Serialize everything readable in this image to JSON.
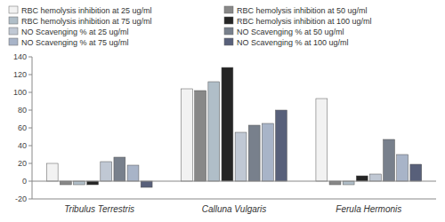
{
  "chart_data": {
    "type": "bar",
    "categories": [
      "Tribulus Terrestris",
      "Calluna Vulgaris",
      "Ferula Hermonis"
    ],
    "series": [
      {
        "name": "RBC hemolysis inhibition at 25 ug/ml",
        "color": "#f2f2f2",
        "values": [
          20,
          104,
          93
        ]
      },
      {
        "name": "RBC hemolysis inhibition at 50 ug/ml",
        "color": "#888888",
        "values": [
          -4,
          102,
          -4
        ]
      },
      {
        "name": "RBC hemolysis inhibition at 75 ug/ml",
        "color": "#b0bec8",
        "values": [
          -4,
          112,
          -4
        ]
      },
      {
        "name": "RBC hemolysis inhibition at 100 ug/ml",
        "color": "#252525",
        "values": [
          -4,
          128,
          6
        ]
      },
      {
        "name": "NO Scavenging % at 25 ug/ml",
        "color": "#c0c8d4",
        "values": [
          22,
          55,
          8
        ]
      },
      {
        "name": "NO Scavenging % at 50 ug/ml",
        "color": "#78808c",
        "values": [
          27,
          63,
          47
        ]
      },
      {
        "name": "NO Scavenging % at 75 ug/ml",
        "color": "#a8b4c8",
        "values": [
          18,
          65,
          30
        ]
      },
      {
        "name": "NO Scavenging % at 100 ug/ml",
        "color": "#58607a",
        "values": [
          -7,
          80,
          19
        ]
      }
    ],
    "ylim": [
      -20,
      140
    ],
    "yticks": [
      -20,
      0,
      20,
      40,
      60,
      80,
      100,
      120,
      140
    ],
    "grid": false,
    "legend": "top-left"
  }
}
